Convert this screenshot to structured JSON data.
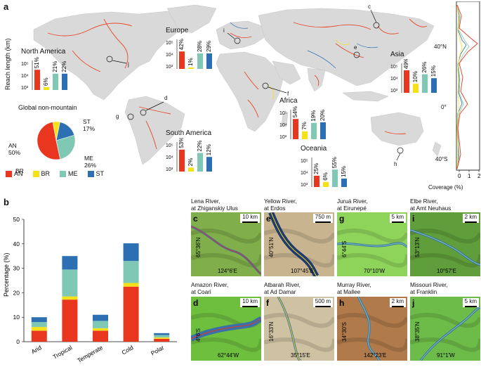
{
  "panels": {
    "a": "a",
    "b": "b"
  },
  "regions": [
    {
      "name": "North America",
      "vals": [
        "51%",
        "6%",
        "21%",
        "22%"
      ],
      "heights": [
        0.72,
        0.1,
        0.58,
        0.58
      ]
    },
    {
      "name": "Europe",
      "vals": [
        "42%",
        "1%",
        "28%",
        "29%"
      ],
      "heights": [
        0.62,
        0.05,
        0.55,
        0.55
      ]
    },
    {
      "name": "Asia",
      "vals": [
        "49%",
        "10%",
        "26%",
        "15%"
      ],
      "heights": [
        0.8,
        0.32,
        0.66,
        0.52
      ]
    },
    {
      "name": "Africa",
      "vals": [
        "54%",
        "7%",
        "19%",
        "20%"
      ],
      "heights": [
        0.72,
        0.28,
        0.58,
        0.6
      ]
    },
    {
      "name": "South America",
      "vals": [
        "53%",
        "2%",
        "22%",
        "12%"
      ],
      "heights": [
        0.78,
        0.14,
        0.66,
        0.52
      ]
    },
    {
      "name": "Oceania",
      "vals": [
        "25%",
        "6%",
        "55%",
        "15%"
      ],
      "heights": [
        0.4,
        0.18,
        0.62,
        0.3
      ]
    }
  ],
  "reach_axis": {
    "label": "Reach length (km)",
    "ticks": [
      "10⁵",
      "10⁴",
      "10³"
    ]
  },
  "pie": {
    "title": "Global non-mountain",
    "slices": [
      {
        "key": "AN",
        "label": "AN\n50%",
        "value": 50,
        "color": "#e8371e"
      },
      {
        "key": "BR",
        "label": "BR\n6%",
        "value": 6,
        "color": "#f5e117"
      },
      {
        "key": "ME",
        "label": "ME\n26%",
        "value": 26,
        "color": "#7fc8b4"
      },
      {
        "key": "ST",
        "label": "ST\n17%",
        "value": 17,
        "color": "#2d6fb3"
      }
    ],
    "legend": [
      "AN",
      "BR",
      "ME",
      "ST"
    ]
  },
  "colors": {
    "AN": "#e8371e",
    "BR": "#f5e117",
    "ME": "#7fc8b4",
    "ST": "#2d6fb3",
    "land": "#d9d9d9",
    "river": "#e84a2a"
  },
  "map_markers": [
    "c",
    "d",
    "e",
    "f",
    "g",
    "h",
    "i",
    "j"
  ],
  "lat_profile": {
    "xlabel": "Coverage (%)",
    "xticks": [
      "0",
      "1",
      "2"
    ],
    "yticks": [
      "40°N",
      "0°",
      "40°S"
    ]
  },
  "chart_data": {
    "type": "bar",
    "title": "",
    "xlabel": "",
    "ylabel": "Percentage (%)",
    "ylim": [
      0,
      50
    ],
    "yticks": [
      0,
      10,
      20,
      30,
      40,
      50
    ],
    "categories": [
      "Arid",
      "Tropical",
      "Temperate",
      "Cold",
      "Polar"
    ],
    "stacked": true,
    "series": [
      {
        "name": "AN",
        "values": [
          4.5,
          17.2,
          4.5,
          22.5,
          1.2
        ]
      },
      {
        "name": "BR",
        "values": [
          1.5,
          1.3,
          1.0,
          1.5,
          0.5
        ]
      },
      {
        "name": "ME",
        "values": [
          2.0,
          11.0,
          3.0,
          9.0,
          1.0
        ]
      },
      {
        "name": "ST",
        "values": [
          2.0,
          5.5,
          2.5,
          7.2,
          0.8
        ]
      }
    ]
  },
  "thumbs": [
    {
      "id": "c",
      "title": "Lena River,\nat Zhiganskiy Ulus",
      "scale": "10 km",
      "lat": "65°36'N",
      "lon": "124°6'E",
      "bg": "#7fae4a"
    },
    {
      "id": "e",
      "title": "Yellow River,\nat Erdos",
      "scale": "750 m",
      "lat": "40°51'N",
      "lon": "107°45'E",
      "bg": "#c8b590"
    },
    {
      "id": "g",
      "title": "Juruá River,\nat Eirunepé",
      "scale": "5 km",
      "lat": "6°44'S",
      "lon": "70°10'W",
      "bg": "#8fd45a"
    },
    {
      "id": "i",
      "title": "Elbe River,\nat Amt Neuhaus",
      "scale": "2 km",
      "lat": "53°13'N",
      "lon": "10°57'E",
      "bg": "#5f9e3a"
    },
    {
      "id": "d",
      "title": "Amazon River,\nat Coari",
      "scale": "10 km",
      "lat": "4°6'S",
      "lon": "62°44'W",
      "bg": "#6fbf3f"
    },
    {
      "id": "f",
      "title": "Atbarah River,\nat Ad Damar",
      "scale": "500 m",
      "lat": "16°33'N",
      "lon": "35°15'E",
      "bg": "#cfc2a2"
    },
    {
      "id": "h",
      "title": "Murray River,\nat Mallee",
      "scale": "2 km",
      "lat": "34°30'S",
      "lon": "142°23'E",
      "bg": "#b07a4a"
    },
    {
      "id": "j",
      "title": "Missouri River,\nat Franklin",
      "scale": "5 km",
      "lat": "38°35'N",
      "lon": "91°1'W",
      "bg": "#6dbb48"
    }
  ]
}
